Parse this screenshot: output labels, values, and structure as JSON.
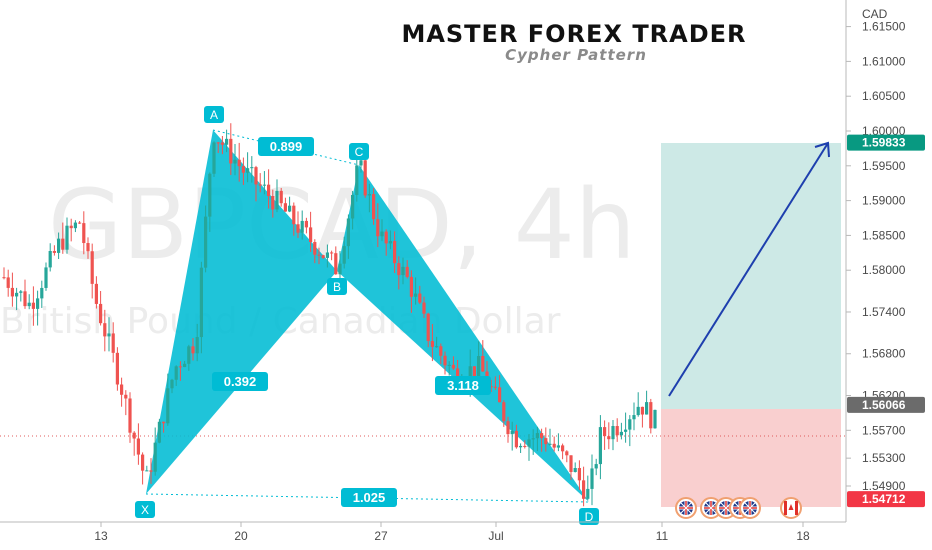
{
  "header": {
    "title": "MASTER FOREX TRADER",
    "subtitle": "Cypher Pattern"
  },
  "watermark": {
    "symbol": "GBPCAD, 4h",
    "description": "British Pound / Canadian Dollar"
  },
  "chart_data": {
    "type": "candlestick",
    "currency": "CAD",
    "y_ticks": [
      "1.61500",
      "1.61000",
      "1.60500",
      "1.60000",
      "1.59500",
      "1.59000",
      "1.58500",
      "1.58000",
      "1.57400",
      "1.56800",
      "1.56200",
      "1.55700",
      "1.55300",
      "1.54900"
    ],
    "x_ticks": [
      "13",
      "20",
      "27",
      "Jul",
      "11",
      "18"
    ],
    "price_tags": [
      {
        "value": "1.59833",
        "color": "#089981",
        "role": "target"
      },
      {
        "value": "1.56066",
        "color": "#6b6b6b",
        "role": "current"
      },
      {
        "value": "1.54712",
        "color": "#f23645",
        "role": "stop"
      }
    ],
    "pattern": {
      "name": "Cypher Pattern",
      "points": [
        {
          "label": "X",
          "price": 1.5494
        },
        {
          "label": "A",
          "price": 1.6
        },
        {
          "label": "B",
          "price": 1.5802
        },
        {
          "label": "C",
          "price": 1.5952
        },
        {
          "label": "D",
          "price": 1.5476
        }
      ],
      "ratios": [
        "0.392",
        "0.899",
        "3.118",
        "1.025"
      ]
    },
    "position": {
      "type": "long",
      "entry": 1.56066,
      "target": 1.59833,
      "stop": 1.54712
    },
    "colors": {
      "pattern_fill": "#00bcd4",
      "bull": "#26a69a",
      "bear": "#ef5350",
      "profit_zone": "#cde9e6",
      "loss_zone": "#f9cfcf",
      "arrow": "#1e3fae"
    },
    "event_icons": [
      "gb-flag-icon",
      "gb-flag-icon",
      "gb-flag-icon",
      "gb-flag-icon",
      "gb-flag-icon",
      "ca-flag-icon"
    ]
  }
}
